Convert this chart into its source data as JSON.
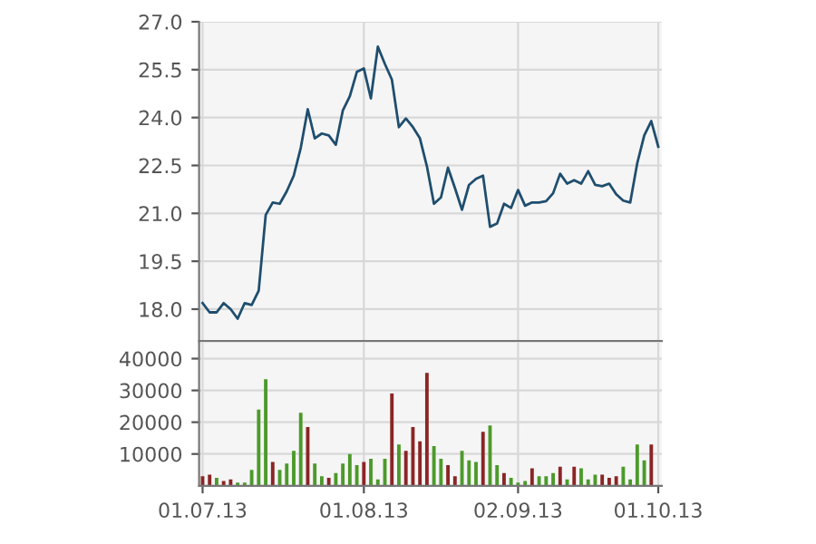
{
  "chart_data": [
    {
      "type": "line",
      "categories": [
        "01.07.13",
        null,
        null,
        null,
        null,
        null,
        null,
        null,
        null,
        null,
        null,
        null,
        null,
        null,
        null,
        null,
        null,
        null,
        null,
        null,
        null,
        null,
        null,
        "01.08.13",
        null,
        null,
        null,
        null,
        null,
        null,
        null,
        null,
        null,
        null,
        null,
        null,
        null,
        null,
        null,
        null,
        null,
        null,
        null,
        null,
        null,
        "02.09.13",
        null,
        null,
        null,
        null,
        null,
        null,
        null,
        null,
        null,
        null,
        null,
        null,
        null,
        null,
        null,
        null,
        null,
        null,
        null,
        "01.10.13"
      ],
      "series": [
        {
          "color": "#1f4e6e",
          "values": [
            18.19,
            17.9,
            17.9,
            18.19,
            18.0,
            17.7,
            18.19,
            18.13,
            18.58,
            20.95,
            21.34,
            21.3,
            21.69,
            22.18,
            23.05,
            24.26,
            23.35,
            23.5,
            23.44,
            23.15,
            24.22,
            24.67,
            25.43,
            25.54,
            24.6,
            26.22,
            25.68,
            25.19,
            23.7,
            23.97,
            23.7,
            23.35,
            22.47,
            21.3,
            21.5,
            22.43,
            21.79,
            21.11,
            21.89,
            22.08,
            22.18,
            20.58,
            20.68,
            21.3,
            21.17,
            21.73,
            21.24,
            21.34,
            21.34,
            21.38,
            21.63,
            22.24,
            21.93,
            22.04,
            21.93,
            22.32,
            21.89,
            21.85,
            21.93,
            21.6,
            21.4,
            21.34,
            22.57,
            23.44,
            23.89,
            23.09
          ]
        }
      ],
      "ylim": [
        17.0,
        27.0
      ],
      "yticks": [
        {
          "value": 18,
          "label": "18.0"
        },
        {
          "value": 19.5,
          "label": "19.5"
        },
        {
          "value": 21,
          "label": "21.0"
        },
        {
          "value": 22.5,
          "label": "22.5"
        },
        {
          "value": 24,
          "label": "24.0"
        },
        {
          "value": 25.5,
          "label": "25.5"
        },
        {
          "value": 27,
          "label": "27.0"
        }
      ],
      "grid": true,
      "tick_labels": "y"
    },
    {
      "type": "bar",
      "categories": [
        "01.07.13",
        null,
        null,
        null,
        null,
        null,
        null,
        null,
        null,
        null,
        null,
        null,
        null,
        null,
        null,
        null,
        null,
        null,
        null,
        null,
        null,
        null,
        null,
        "01.08.13",
        null,
        null,
        null,
        null,
        null,
        null,
        null,
        null,
        null,
        null,
        null,
        null,
        null,
        null,
        null,
        null,
        null,
        null,
        null,
        null,
        null,
        "02.09.13",
        null,
        null,
        null,
        null,
        null,
        null,
        null,
        null,
        null,
        null,
        null,
        null,
        null,
        null,
        null,
        null,
        null,
        null,
        null,
        "01.10.13"
      ],
      "values": [
        3000,
        3500,
        2500,
        1500,
        2000,
        1000,
        1000,
        5000,
        24000,
        33500,
        7500,
        5000,
        7000,
        11000,
        23000,
        18500,
        7000,
        3000,
        2500,
        4000,
        7000,
        10000,
        6500,
        7500,
        8500,
        2000,
        8500,
        29000,
        13000,
        11000,
        18500,
        14000,
        35500,
        12500,
        8500,
        6500,
        3000,
        11000,
        8000,
        7500,
        17000,
        19000,
        6500,
        4000,
        2500,
        1000,
        1500,
        5500,
        3000,
        3000,
        4000,
        6000,
        2000,
        6000,
        5500,
        2000,
        3500,
        3500,
        2500,
        3000,
        6000,
        2000,
        13000,
        8000,
        13000,
        null
      ],
      "colors": [
        "#8b2525",
        "#8b2525",
        "#4c9a2a",
        "#8b2525",
        "#8b2525",
        "#4c9a2a",
        "#4c9a2a",
        "#4c9a2a",
        "#4c9a2a",
        "#4c9a2a",
        "#8b2525",
        "#4c9a2a",
        "#4c9a2a",
        "#4c9a2a",
        "#4c9a2a",
        "#8b2525",
        "#4c9a2a",
        "#4c9a2a",
        "#8b2525",
        "#4c9a2a",
        "#4c9a2a",
        "#4c9a2a",
        "#4c9a2a",
        "#8b2525",
        "#4c9a2a",
        "#4c9a2a",
        "#4c9a2a",
        "#8b2525",
        "#4c9a2a",
        "#8b2525",
        "#8b2525",
        "#8b2525",
        "#8b2525",
        "#4c9a2a",
        "#4c9a2a",
        "#8b2525",
        "#8b2525",
        "#4c9a2a",
        "#4c9a2a",
        "#4c9a2a",
        "#8b2525",
        "#4c9a2a",
        "#4c9a2a",
        "#8b2525",
        "#4c9a2a",
        "#4c9a2a",
        "#4c9a2a",
        "#8b2525",
        "#4c9a2a",
        "#4c9a2a",
        "#4c9a2a",
        "#8b2525",
        "#4c9a2a",
        "#8b2525",
        "#4c9a2a",
        "#4c9a2a",
        "#4c9a2a",
        "#8b2525",
        "#8b2525",
        "#8b2525",
        "#4c9a2a",
        "#4c9a2a",
        "#4c9a2a",
        "#4c9a2a",
        "#8b2525",
        "#4c9a2a"
      ],
      "ylim": [
        0,
        45000
      ],
      "yticks": [
        10000,
        20000,
        30000,
        40000
      ],
      "grid": true
    }
  ]
}
